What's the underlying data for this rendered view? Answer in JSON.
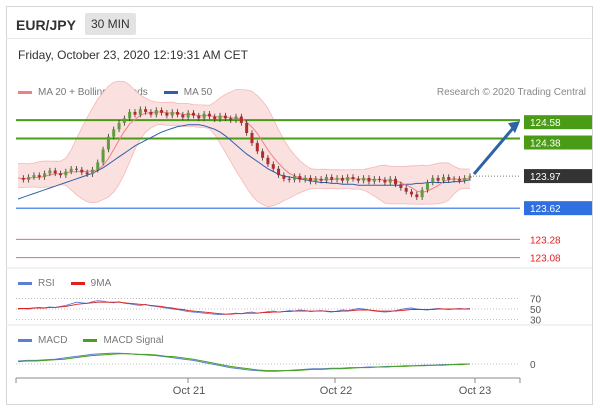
{
  "header": {
    "pair": "EUR/JPY",
    "timeframe": "30 MIN"
  },
  "date_line": "Friday, October 23, 2020 12:19:31 AM CET",
  "research": "Research © 2020 Trading Central",
  "legends": {
    "price": [
      {
        "label": "MA 20 + Bollinger Bands",
        "color": "#f08080"
      },
      {
        "label": "MA 50",
        "color": "#2e5fa8"
      }
    ],
    "rsi": [
      {
        "label": "RSI",
        "color": "#5b7fd6"
      },
      {
        "label": "9MA",
        "color": "#e02020"
      }
    ],
    "macd": [
      {
        "label": "MACD",
        "color": "#5b7fd6"
      },
      {
        "label": "MACD Signal",
        "color": "#49a01c"
      }
    ]
  },
  "colors": {
    "green_level": "#4a9c16",
    "blue_level": "#2f6fe0",
    "red_level": "#e07070",
    "last_price": "#333333",
    "bollinger_fill": "#fbe0e0",
    "candle_up": "#5f9c3a",
    "candle_down": "#b02c2c",
    "arrow": "#2e63a8"
  },
  "chart_data": [
    {
      "type": "candlestick",
      "panel": "price",
      "ylim": [
        123.0,
        124.8
      ],
      "x_ticks": [
        "Oct 21",
        "Oct 22",
        "Oct 23"
      ],
      "levels": [
        {
          "value": 124.58,
          "label": "124.58",
          "kind": "resistance"
        },
        {
          "value": 124.38,
          "label": "124.38",
          "kind": "resistance"
        },
        {
          "value": 123.97,
          "label": "123.97",
          "kind": "last"
        },
        {
          "value": 123.62,
          "label": "123.62",
          "kind": "pivot"
        },
        {
          "value": 123.28,
          "label": "123.28",
          "kind": "support"
        },
        {
          "value": 123.08,
          "label": "123.08",
          "kind": "support"
        }
      ],
      "close_series": [
        123.95,
        123.93,
        123.96,
        123.98,
        123.96,
        124.0,
        124.03,
        124.0,
        123.98,
        124.02,
        124.05,
        124.04,
        124.01,
        123.99,
        124.04,
        124.12,
        124.26,
        124.4,
        124.48,
        124.55,
        124.6,
        124.67,
        124.64,
        124.7,
        124.67,
        124.64,
        124.69,
        124.66,
        124.63,
        124.67,
        124.64,
        124.61,
        124.66,
        124.63,
        124.6,
        124.65,
        124.62,
        124.59,
        124.63,
        124.6,
        124.58,
        124.62,
        124.55,
        124.44,
        124.33,
        124.24,
        124.17,
        124.1,
        124.05,
        123.98,
        123.94,
        123.93,
        123.97,
        123.93,
        123.95,
        123.91,
        123.94,
        123.92,
        123.96,
        123.93,
        123.95,
        123.92,
        123.96,
        123.94,
        123.92,
        123.95,
        123.91,
        123.94,
        123.93,
        123.9,
        123.94,
        123.88,
        123.84,
        123.8,
        123.77,
        123.74,
        123.82,
        123.9,
        123.95,
        123.92,
        123.96,
        123.93,
        123.94,
        123.92,
        123.95,
        123.97
      ],
      "ma50": [
        123.72,
        123.74,
        123.76,
        123.78,
        123.8,
        123.82,
        123.84,
        123.86,
        123.88,
        123.9,
        123.92,
        123.94,
        123.96,
        123.98,
        124.0,
        124.03,
        124.06,
        124.1,
        124.14,
        124.18,
        124.22,
        124.26,
        124.3,
        124.33,
        124.36,
        124.39,
        124.42,
        124.45,
        124.47,
        124.49,
        124.51,
        124.52,
        124.53,
        124.53,
        124.53,
        124.52,
        124.5,
        124.48,
        124.45,
        124.41,
        124.36,
        124.31,
        124.26,
        124.21,
        124.17,
        124.13,
        124.09,
        124.05,
        124.02,
        123.99,
        123.97,
        123.96,
        123.95,
        123.94,
        123.93,
        123.92,
        123.91,
        123.9,
        123.9,
        123.89,
        123.89,
        123.88,
        123.88,
        123.88,
        123.87,
        123.87,
        123.87,
        123.87,
        123.87,
        123.87,
        123.87,
        123.87,
        123.87,
        123.88,
        123.88,
        123.89,
        123.89,
        123.9,
        123.9,
        123.9,
        123.9,
        123.9,
        123.91,
        123.91,
        123.92,
        123.93
      ],
      "projection": {
        "from": 123.97,
        "to": 124.58
      }
    },
    {
      "type": "line",
      "panel": "RSI",
      "ylim": [
        25,
        75
      ],
      "y_ticks": [
        70,
        50,
        30
      ],
      "series": [
        {
          "name": "RSI",
          "values": [
            50,
            51,
            50,
            52,
            53,
            52,
            54,
            53,
            55,
            57,
            60,
            63,
            62,
            61,
            64,
            66,
            65,
            63,
            62,
            64,
            61,
            60,
            58,
            57,
            59,
            56,
            55,
            53,
            52,
            50,
            49,
            47,
            45,
            44,
            43,
            42,
            41,
            40,
            39,
            40,
            41,
            42,
            41,
            43,
            44,
            42,
            43,
            45,
            46,
            44,
            45,
            47,
            46,
            48,
            47,
            45,
            46,
            47,
            45,
            44,
            46,
            48,
            47,
            49,
            51,
            50,
            48,
            46,
            45,
            44,
            45,
            47,
            49,
            51,
            52,
            50,
            49,
            48,
            50,
            51,
            50,
            49,
            50,
            51,
            50,
            51
          ]
        },
        {
          "name": "9MA",
          "values": [
            51,
            51,
            51,
            52,
            52,
            52,
            53,
            53,
            54,
            55,
            57,
            59,
            60,
            61,
            62,
            63,
            63,
            63,
            63,
            63,
            62,
            61,
            60,
            59,
            58,
            57,
            56,
            55,
            53,
            52,
            50,
            49,
            47,
            46,
            45,
            44,
            43,
            42,
            41,
            40,
            40,
            41,
            41,
            42,
            42,
            42,
            43,
            43,
            44,
            44,
            45,
            45,
            46,
            46,
            46,
            46,
            46,
            46,
            46,
            45,
            45,
            46,
            46,
            47,
            48,
            48,
            48,
            47,
            46,
            46,
            46,
            46,
            47,
            48,
            49,
            49,
            49,
            49,
            49,
            50,
            50,
            50,
            50,
            50,
            50,
            50
          ]
        }
      ]
    },
    {
      "type": "line",
      "panel": "MACD",
      "y_ticks": [
        0
      ],
      "series": [
        {
          "name": "MACD",
          "values": [
            0.05,
            0.06,
            0.06,
            0.07,
            0.08,
            0.1,
            0.12,
            0.14,
            0.16,
            0.17,
            0.18,
            0.18,
            0.17,
            0.16,
            0.15,
            0.14,
            0.12,
            0.1,
            0.08,
            0.06,
            0.03,
            0.0,
            -0.03,
            -0.06,
            -0.08,
            -0.1,
            -0.11,
            -0.12,
            -0.12,
            -0.11,
            -0.1,
            -0.09,
            -0.08,
            -0.08,
            -0.07,
            -0.07,
            -0.06,
            -0.06,
            -0.05,
            -0.05,
            -0.04,
            -0.04,
            -0.03,
            -0.03,
            -0.02,
            -0.02,
            -0.01,
            -0.01,
            0.0,
            0.0
          ]
        },
        {
          "name": "MACD Signal",
          "values": [
            0.04,
            0.05,
            0.05,
            0.06,
            0.07,
            0.08,
            0.1,
            0.12,
            0.14,
            0.15,
            0.16,
            0.17,
            0.17,
            0.16,
            0.16,
            0.15,
            0.13,
            0.12,
            0.1,
            0.08,
            0.05,
            0.02,
            -0.01,
            -0.04,
            -0.06,
            -0.08,
            -0.1,
            -0.11,
            -0.11,
            -0.11,
            -0.11,
            -0.1,
            -0.09,
            -0.09,
            -0.08,
            -0.08,
            -0.07,
            -0.06,
            -0.06,
            -0.05,
            -0.05,
            -0.04,
            -0.04,
            -0.03,
            -0.03,
            -0.02,
            -0.02,
            -0.01,
            -0.01,
            0.0
          ]
        }
      ]
    }
  ]
}
